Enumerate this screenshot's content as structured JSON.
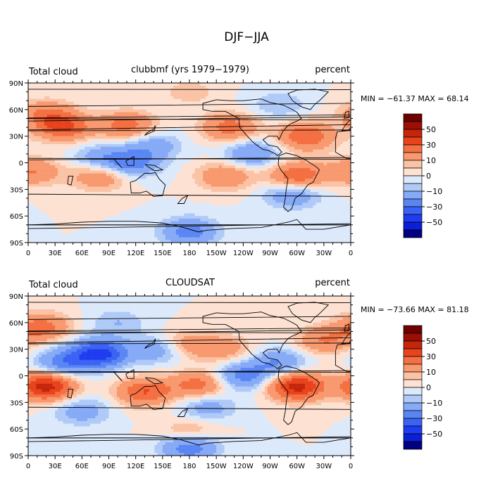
{
  "page_title": "DJF−JJA",
  "colorbar": {
    "levels": [
      -60,
      -50,
      -40,
      -30,
      -20,
      -10,
      -5,
      0,
      5,
      10,
      20,
      30,
      40,
      50,
      60
    ],
    "tick_labels": [
      "50",
      "30",
      "10",
      "0",
      "−10",
      "−30",
      "−50"
    ],
    "colors": [
      "#000080",
      "#0b1fd6",
      "#1f3cf0",
      "#3b62f3",
      "#5a86f4",
      "#86aaf6",
      "#b0caf8",
      "#dce9fb",
      "#fde2d3",
      "#fbc3a6",
      "#f8996f",
      "#f46f41",
      "#e8431d",
      "#c4250b",
      "#9b1006",
      "#6e0000"
    ]
  },
  "x_tick_labels": [
    "0",
    "30E",
    "60E",
    "90E",
    "120E",
    "150E",
    "180",
    "150W",
    "120W",
    "90W",
    "60W",
    "30W",
    "0"
  ],
  "y_tick_labels": [
    "90N",
    "60N",
    "30N",
    "0",
    "30S",
    "60S",
    "90S"
  ],
  "panels": [
    {
      "left_title": "Total cloud",
      "center_title": "clubbmf (yrs 1979−1979)",
      "right_title": "percent",
      "stats": "MIN = −61.37 MAX =  68.14"
    },
    {
      "left_title": "Total cloud",
      "center_title": "CLOUDSAT",
      "right_title": "percent",
      "stats": "MIN = −73.66 MAX =  81.18"
    }
  ],
  "chart_data": [
    {
      "type": "heatmap",
      "title": "clubbmf (yrs 1979−1979)",
      "variable": "Total cloud",
      "units": "percent",
      "min": -61.37,
      "max": 68.14,
      "xlim": [
        0,
        360
      ],
      "ylim": [
        -90,
        90
      ],
      "features": [
        {
          "lon": 40,
          "lat": 40,
          "value": 30
        },
        {
          "lon": 20,
          "lat": 55,
          "value": 20
        },
        {
          "lon": 110,
          "lat": 42,
          "value": 25
        },
        {
          "lon": 5,
          "lat": -10,
          "value": 20
        },
        {
          "lon": 80,
          "lat": 5,
          "value": -15
        },
        {
          "lon": 80,
          "lat": -15,
          "value": 20
        },
        {
          "lon": 115,
          "lat": 0,
          "value": -25
        },
        {
          "lon": 140,
          "lat": 20,
          "value": -15
        },
        {
          "lon": 225,
          "lat": 40,
          "value": 25
        },
        {
          "lon": 310,
          "lat": 30,
          "value": 30
        },
        {
          "lon": 220,
          "lat": -15,
          "value": 20
        },
        {
          "lon": 250,
          "lat": 10,
          "value": -20
        },
        {
          "lon": 300,
          "lat": -15,
          "value": 30
        },
        {
          "lon": 295,
          "lat": -35,
          "value": -20
        },
        {
          "lon": 280,
          "lat": 65,
          "value": -10
        },
        {
          "lon": 180,
          "lat": -78,
          "value": -25
        },
        {
          "lon": 180,
          "lat": 80,
          "value": 8
        }
      ]
    },
    {
      "type": "heatmap",
      "title": "CLOUDSAT",
      "variable": "Total cloud",
      "units": "percent",
      "min": -73.66,
      "max": 81.18,
      "xlim": [
        0,
        360
      ],
      "ylim": [
        -90,
        90
      ],
      "features": [
        {
          "lon": 20,
          "lat": -12,
          "value": 45
        },
        {
          "lon": 300,
          "lat": -12,
          "value": 45
        },
        {
          "lon": 130,
          "lat": -18,
          "value": 30
        },
        {
          "lon": 80,
          "lat": 25,
          "value": -45
        },
        {
          "lon": 40,
          "lat": 15,
          "value": -25
        },
        {
          "lon": 150,
          "lat": 30,
          "value": -20
        },
        {
          "lon": 175,
          "lat": 35,
          "value": 20
        },
        {
          "lon": 220,
          "lat": 30,
          "value": 15
        },
        {
          "lon": 240,
          "lat": 0,
          "value": -25
        },
        {
          "lon": 280,
          "lat": 15,
          "value": -20
        },
        {
          "lon": 330,
          "lat": 40,
          "value": 20
        },
        {
          "lon": 15,
          "lat": 55,
          "value": 25
        },
        {
          "lon": 190,
          "lat": -10,
          "value": 25
        },
        {
          "lon": 200,
          "lat": -35,
          "value": -15
        },
        {
          "lon": 60,
          "lat": -40,
          "value": -15
        },
        {
          "lon": 180,
          "lat": -65,
          "value": 15
        },
        {
          "lon": 180,
          "lat": -80,
          "value": -30
        },
        {
          "lon": 100,
          "lat": 60,
          "value": -10
        }
      ]
    }
  ]
}
